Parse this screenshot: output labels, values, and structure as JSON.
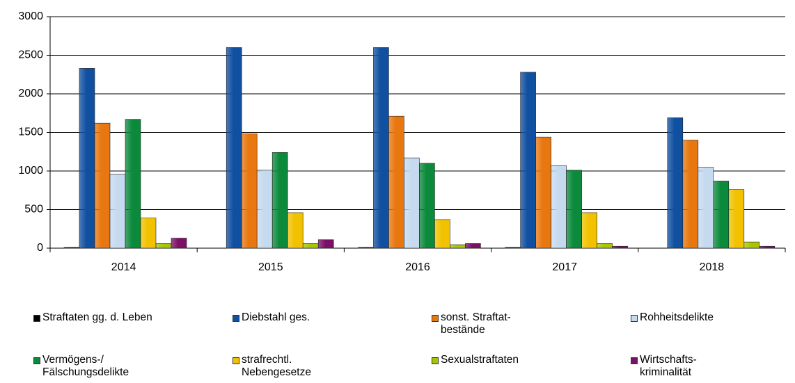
{
  "chart_data": {
    "type": "bar",
    "categories": [
      "2014",
      "2015",
      "2016",
      "2017",
      "2018"
    ],
    "series": [
      {
        "name": "Straftaten gg. d. Leben",
        "color": "#000000",
        "values": [
          10,
          0,
          10,
          10,
          0
        ]
      },
      {
        "name": "Diebstahl ges.",
        "color": "#1150a0",
        "values": [
          2330,
          2600,
          2600,
          2280,
          1690
        ]
      },
      {
        "name": "sonst. Straftat-\nbestände",
        "color": "#e8770f",
        "values": [
          1620,
          1480,
          1710,
          1440,
          1400
        ]
      },
      {
        "name": "Rohheitsdelikte",
        "color": "#c6daef",
        "values": [
          960,
          1010,
          1170,
          1070,
          1050
        ]
      },
      {
        "name": "Vermögens-/\nFälschungsdelikte",
        "color": "#0c8a3c",
        "values": [
          1670,
          1240,
          1100,
          1010,
          870
        ]
      },
      {
        "name": "strafrechtl.\nNebengesetze",
        "color": "#f2c200",
        "values": [
          390,
          460,
          370,
          460,
          760
        ]
      },
      {
        "name": "Sexualstraftaten",
        "color": "#a8c600",
        "values": [
          60,
          60,
          45,
          60,
          80
        ]
      },
      {
        "name": "Wirtschafts-\nkriminalität",
        "color": "#7b1068",
        "values": [
          130,
          110,
          60,
          25,
          25
        ]
      }
    ],
    "ylim": [
      0,
      3000
    ],
    "yticks": [
      0,
      500,
      1000,
      1500,
      2000,
      2500,
      3000
    ],
    "grid": true
  }
}
